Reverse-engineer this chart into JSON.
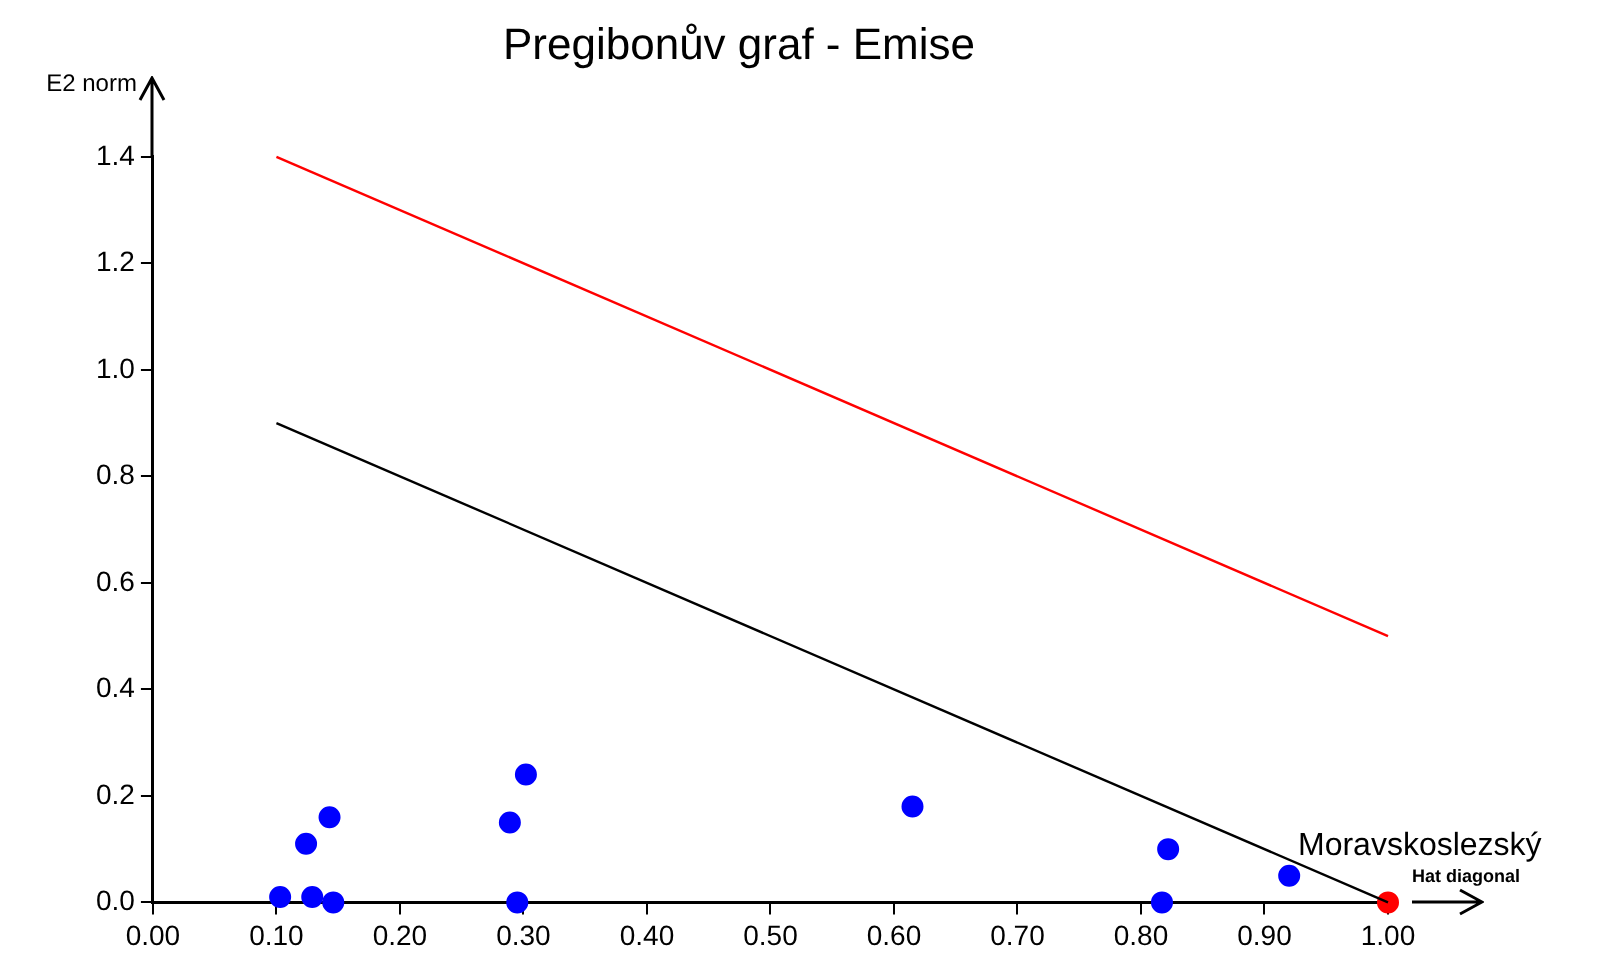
{
  "chart_data": {
    "type": "scatter",
    "title": "Pregibonův graf - Emise",
    "xlabel": "Hat diagonal",
    "ylabel": "E2 norm",
    "xlim": [
      0,
      1
    ],
    "xticks": [
      {
        "value": 0,
        "label": "0.00"
      },
      {
        "value": 0.1,
        "label": "0.10"
      },
      {
        "value": 0.2,
        "label": "0.20"
      },
      {
        "value": 0.3,
        "label": "0.30"
      },
      {
        "value": 0.4,
        "label": "0.40"
      },
      {
        "value": 0.5,
        "label": "0.50"
      },
      {
        "value": 0.6,
        "label": "0.60"
      },
      {
        "value": 0.7,
        "label": "0.70"
      },
      {
        "value": 0.8,
        "label": "0.80"
      },
      {
        "value": 0.9,
        "label": "0.90"
      },
      {
        "value": 1,
        "label": "1.00"
      }
    ],
    "ylim": [
      0,
      1.4
    ],
    "yticks": [
      {
        "value": 0,
        "label": "0.0"
      },
      {
        "value": 0.2,
        "label": "0.2"
      },
      {
        "value": 0.4,
        "label": "0.4"
      },
      {
        "value": 0.6,
        "label": "0.6"
      },
      {
        "value": 0.8,
        "label": "0.8"
      },
      {
        "value": 1,
        "label": "1.0"
      },
      {
        "value": 1.2,
        "label": "1.2"
      },
      {
        "value": 1.4,
        "label": "1.4"
      }
    ],
    "grid": false,
    "legend": false,
    "marker": "circle",
    "series": [
      {
        "type": "line",
        "color": "#ff0000",
        "x": [
          0.1,
          1.0
        ],
        "values": [
          1.4,
          0.5
        ],
        "marker": "none"
      },
      {
        "type": "line",
        "color": "#000000",
        "x": [
          0.1,
          1.0
        ],
        "values": [
          0.9,
          0.0
        ],
        "marker": "none"
      },
      {
        "type": "scatter",
        "color": "#0000ff",
        "x": [
          0.103,
          0.124,
          0.129,
          0.143,
          0.146,
          0.289,
          0.302,
          0.295,
          0.615,
          0.822,
          0.817,
          0.92
        ],
        "values": [
          0.01,
          0.11,
          0.01,
          0.16,
          0.0,
          0.15,
          0.24,
          0.0,
          0.18,
          0.1,
          0.0,
          0.05
        ]
      },
      {
        "type": "scatter",
        "color": "#ff0000",
        "x": [
          1.0
        ],
        "values": [
          0.0
        ]
      }
    ],
    "annotations": [
      {
        "text": "Moravskoslezský",
        "x": 1.0,
        "y": 0.0
      }
    ]
  }
}
